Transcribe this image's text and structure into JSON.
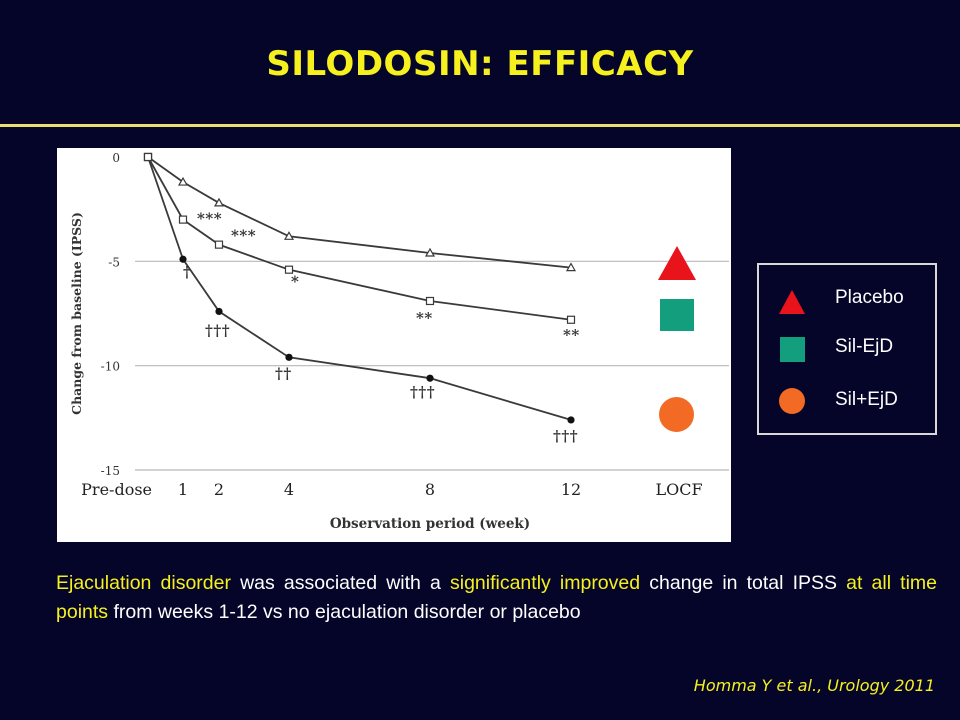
{
  "title": "SILODOSIN: EFFICACY",
  "chart_data": {
    "type": "line",
    "xlabel": "Observation period (week)",
    "ylabel": "Change from baseline (IPSS)",
    "x_tick_labels": [
      "Pre-dose",
      "1",
      "2",
      "4",
      "8",
      "12",
      "LOCF"
    ],
    "x": [
      0,
      1,
      2,
      4,
      8,
      12
    ],
    "yticks": [
      0,
      -5,
      -10,
      -15
    ],
    "ylim": [
      -15,
      0
    ],
    "grid": "horizontal",
    "series": [
      {
        "marker": "open-triangle",
        "values": [
          0,
          -1.2,
          -2.2,
          -3.8,
          -4.6,
          -5.3
        ],
        "annotations": [
          "",
          "",
          "",
          "",
          "",
          ""
        ]
      },
      {
        "marker": "open-square",
        "values": [
          0,
          -3.0,
          -4.2,
          -5.4,
          -6.9,
          -7.8
        ],
        "annotations": [
          "",
          "***",
          "***",
          "*",
          "**",
          "**"
        ]
      },
      {
        "marker": "filled-circle",
        "values": [
          0,
          -4.9,
          -7.4,
          -9.6,
          -10.6,
          -12.6
        ],
        "annotations": [
          "",
          "†",
          "†††",
          "††",
          "†††",
          "†††"
        ]
      }
    ]
  },
  "legend": {
    "items": [
      {
        "label": "Placebo",
        "color": "#e8131b",
        "icon": "red-triangle"
      },
      {
        "label": "Sil-EjD",
        "color": "#139f7e",
        "icon": "green-square"
      },
      {
        "label": "Sil+EjD",
        "color": "#f26a24",
        "icon": "orange-circle"
      }
    ]
  },
  "body": {
    "p1": "Ejaculation disorder",
    "p2": " was associated with a ",
    "p3": "significantly improved",
    "p4": " change in total IPSS ",
    "p5": "at all time points",
    "p6": " from weeks 1-12 vs no ejaculation disorder or placebo"
  },
  "citation": "Homma Y et al., Urology 2011"
}
